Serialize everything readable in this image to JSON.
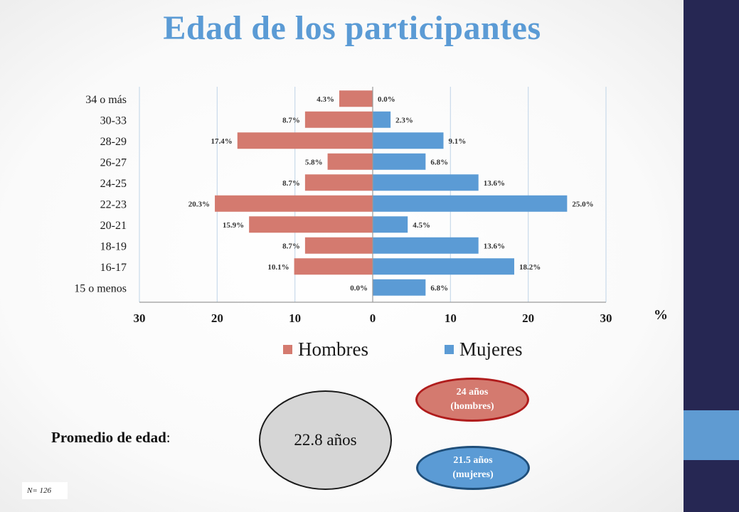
{
  "title": "Edad de los participantes",
  "chart_data": {
    "type": "bar",
    "orientation": "horizontal-population-pyramid",
    "categories": [
      "34 o más",
      "30-33",
      "28-29",
      "26-27",
      "24-25",
      "22-23",
      "20-21",
      "18-19",
      "16-17",
      "15 o menos"
    ],
    "series": [
      {
        "name": "Hombres",
        "color": "#d47a6f",
        "values": [
          4.3,
          8.7,
          17.4,
          5.8,
          8.7,
          20.3,
          15.9,
          8.7,
          10.1,
          0.0
        ],
        "labels": [
          "4.3%",
          "8.7%",
          "17.4%",
          "5.8%",
          "8.7%",
          "20.3%",
          "15.9%",
          "8.7%",
          "10.1%",
          "0.0%"
        ]
      },
      {
        "name": "Mujeres",
        "color": "#5b9bd5",
        "values": [
          0.0,
          2.3,
          9.1,
          6.8,
          13.6,
          25.0,
          4.5,
          13.6,
          18.2,
          6.8
        ],
        "labels": [
          "0.0%",
          "2.3%",
          "9.1%",
          "6.8%",
          "13.6%",
          "25.0%",
          "4.5%",
          "13.6%",
          "18.2%",
          "6.8%"
        ]
      }
    ],
    "xlim": [
      -30,
      30
    ],
    "xticks": [
      -30,
      -20,
      -10,
      0,
      10,
      20,
      30
    ],
    "xtick_labels": [
      "30",
      "20",
      "10",
      "0",
      "10",
      "20",
      "30"
    ],
    "xlabel": "%",
    "grid": "vertical",
    "legend": "bottom"
  },
  "average": {
    "label": "Promedio de edad",
    "colon": ":",
    "value": "22.8 años",
    "men_value": "24 años",
    "men_label": "(hombres)",
    "women_value": "21.5 años",
    "women_label": "(mujeres)"
  },
  "sample_note": "N= 126"
}
